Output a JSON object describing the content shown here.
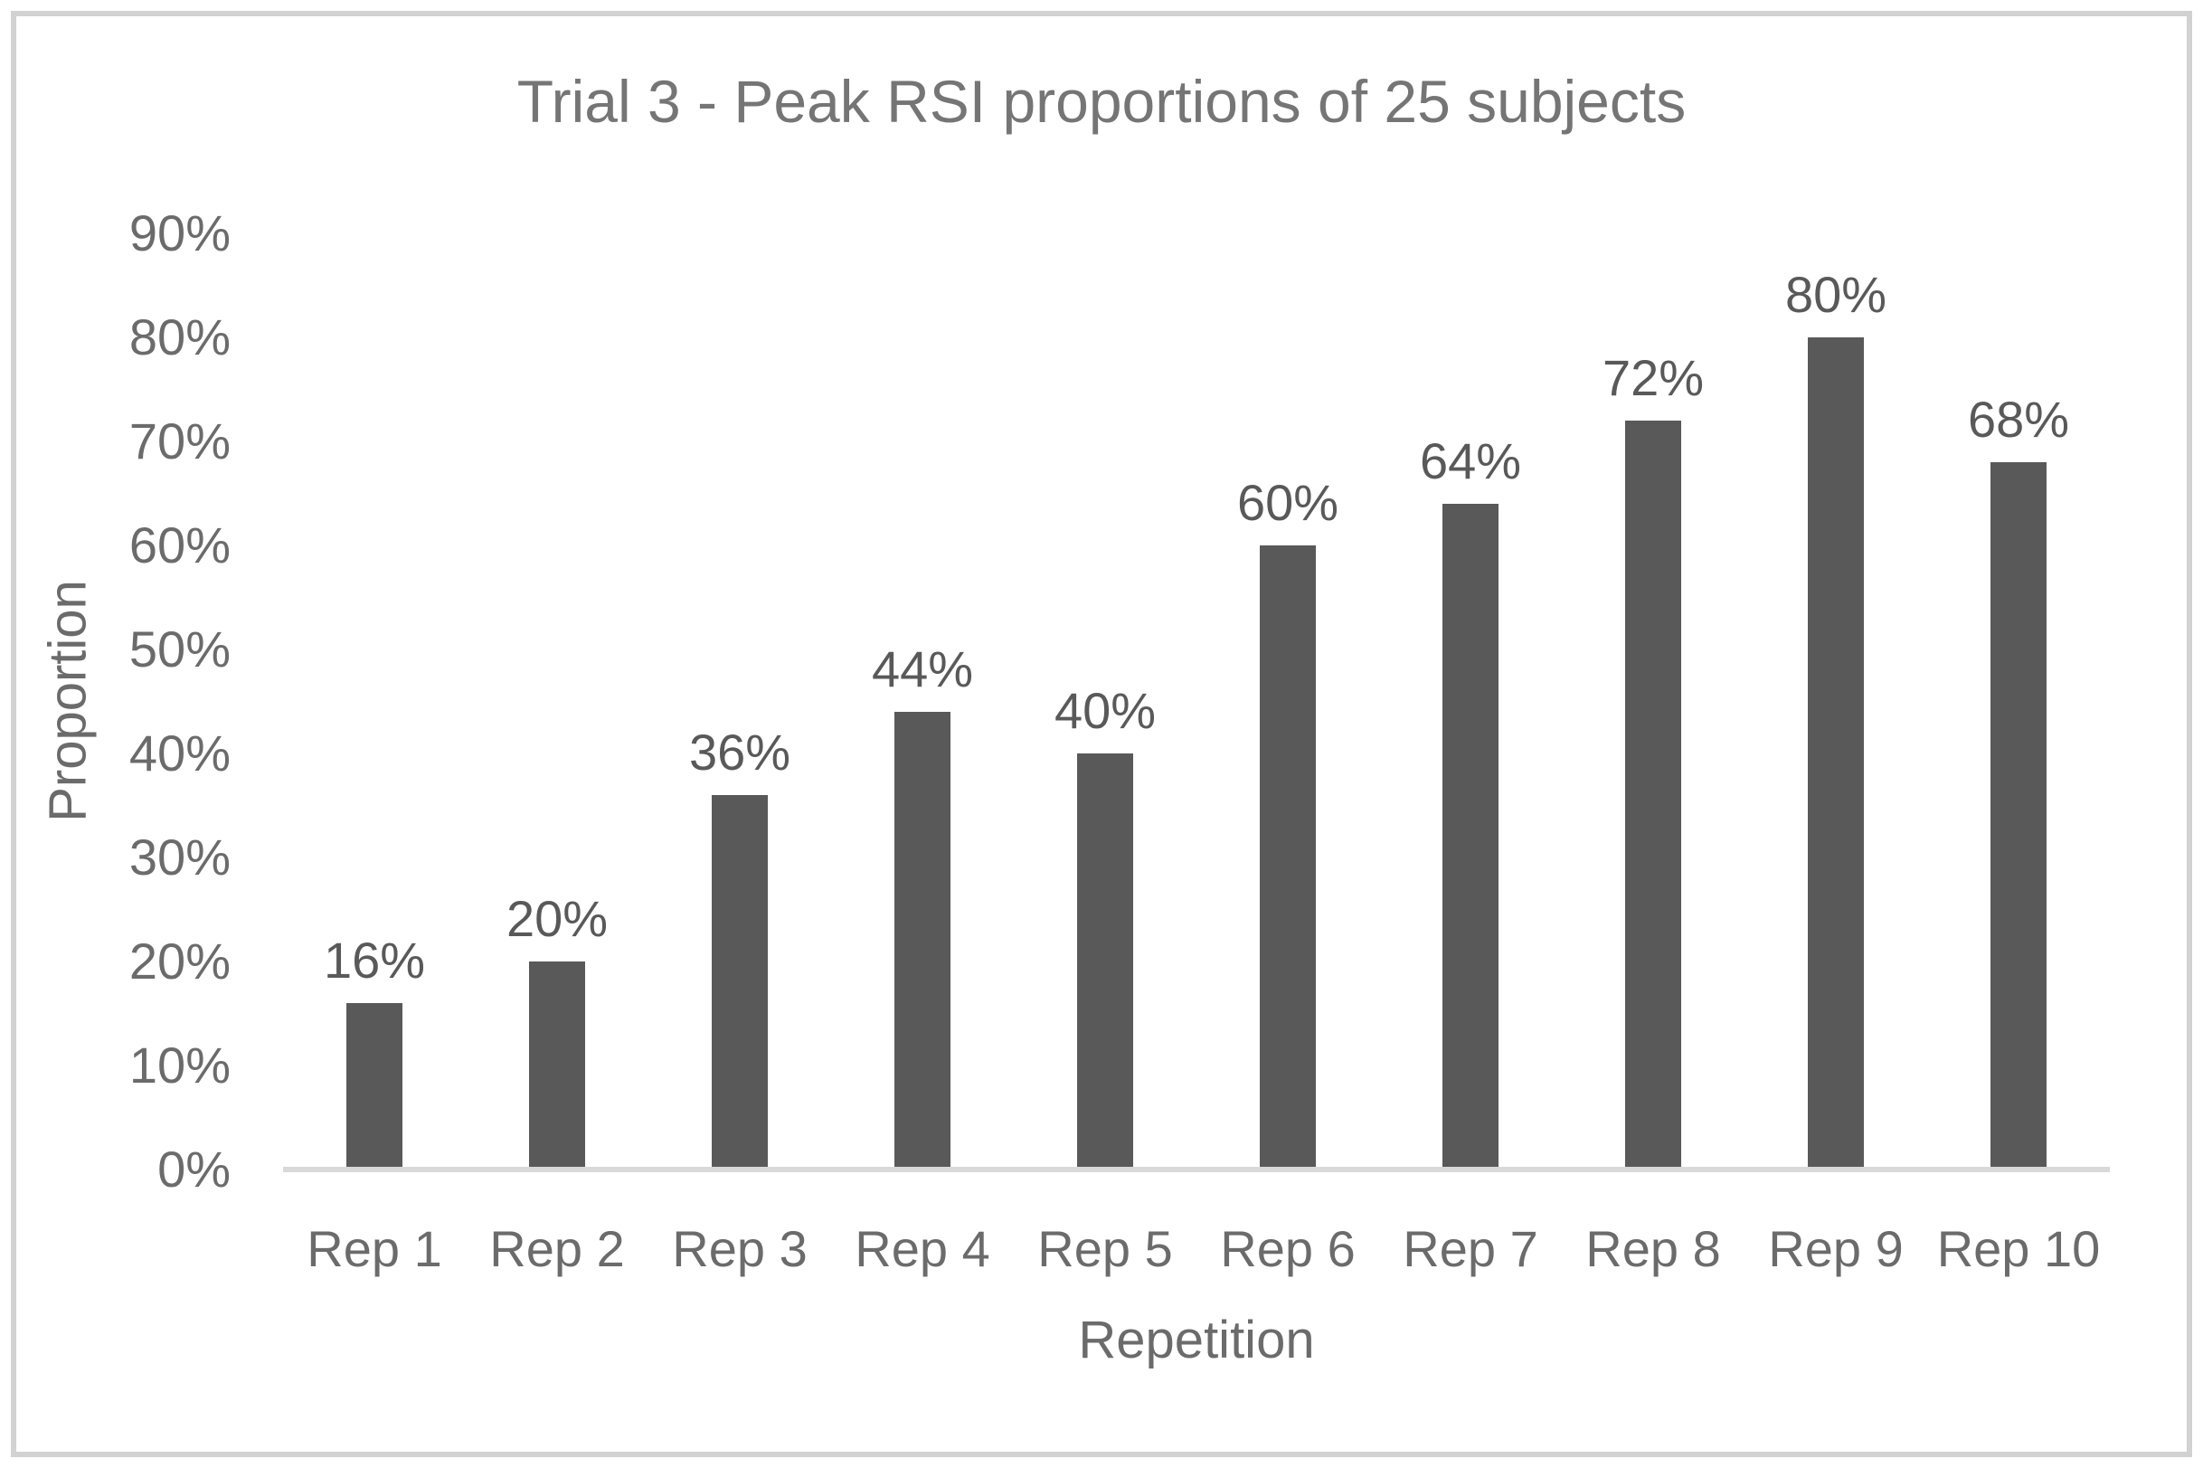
{
  "window": {
    "background_color": "#ffffff",
    "frame_border_color": "#d2d2d2"
  },
  "chart_data": {
    "type": "bar",
    "title": "Trial 3 - Peak RSI proportions of 25 subjects",
    "xlabel": "Repetition",
    "ylabel": "Proportion",
    "categories": [
      "Rep 1",
      "Rep 2",
      "Rep 3",
      "Rep 4",
      "Rep 5",
      "Rep 6",
      "Rep 7",
      "Rep 8",
      "Rep 9",
      "Rep 10"
    ],
    "values": [
      16,
      20,
      36,
      44,
      40,
      60,
      64,
      72,
      80,
      68
    ],
    "data_labels": [
      "16%",
      "20%",
      "36%",
      "44%",
      "40%",
      "60%",
      "64%",
      "72%",
      "80%",
      "68%"
    ],
    "ylim": [
      0,
      90
    ],
    "y_tick_values": [
      0,
      10,
      20,
      30,
      40,
      50,
      60,
      70,
      80,
      90
    ],
    "y_tick_labels": [
      "0%",
      "10%",
      "20%",
      "30%",
      "40%",
      "50%",
      "60%",
      "70%",
      "80%",
      "90%"
    ],
    "grid": false,
    "legend_position": "none",
    "bar_color": "#595959",
    "data_label_color": "#595959",
    "tick_label_color": "#6b6b6b",
    "title_color": "#757575",
    "axis_line_color": "#d9d9d9"
  }
}
